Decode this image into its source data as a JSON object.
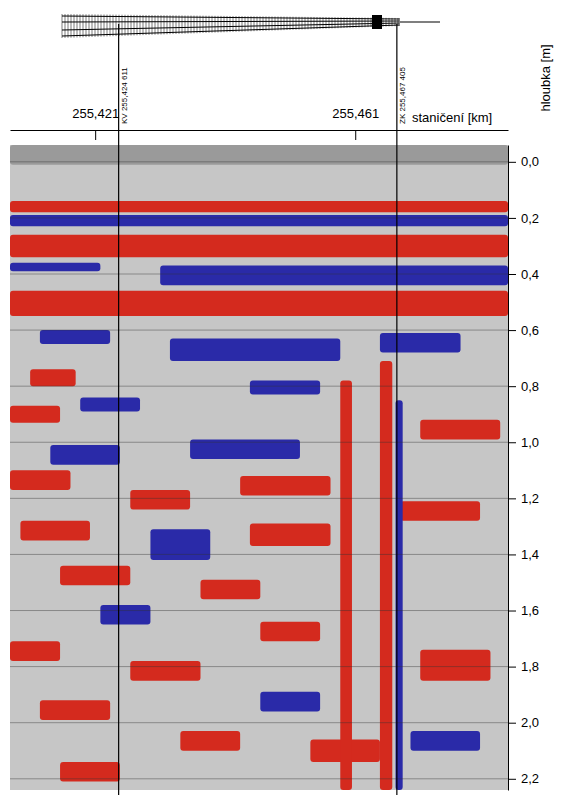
{
  "chart_data": {
    "type": "radargram",
    "x_label": "staničení [km]",
    "y_label": "hloubka [m]",
    "xlim": [
      255.4079,
      255.4845
    ],
    "xticks": [
      {
        "value": 255.421,
        "label": "255,421"
      },
      {
        "value": 255.461,
        "label": "255,461"
      }
    ],
    "ylim": [
      -0.06,
      2.24
    ],
    "yticks": [
      {
        "value": 0.0,
        "label": "0,0"
      },
      {
        "value": 0.2,
        "label": "0,2"
      },
      {
        "value": 0.4,
        "label": "0,4"
      },
      {
        "value": 0.6,
        "label": "0,6"
      },
      {
        "value": 0.8,
        "label": "0,8"
      },
      {
        "value": 1.0,
        "label": "1,0"
      },
      {
        "value": 1.2,
        "label": "1,2"
      },
      {
        "value": 1.4,
        "label": "1,4"
      },
      {
        "value": 1.6,
        "label": "1,6"
      },
      {
        "value": 1.8,
        "label": "1,8"
      },
      {
        "value": 2.0,
        "label": "2,0"
      },
      {
        "value": 2.2,
        "label": "2,2"
      }
    ],
    "grid": true,
    "markers": [
      {
        "label": "KV 255,424 611",
        "value": 255.424611
      },
      {
        "label": "ZK 255,467 405",
        "value": 255.467405
      }
    ],
    "reflections": [
      {
        "x": [
          255.4079,
          255.4845
        ],
        "depth": [
          -0.06,
          0.01
        ],
        "color": "#9a9a9a"
      },
      {
        "x": [
          255.4079,
          255.4845
        ],
        "depth": [
          0.14,
          0.18
        ],
        "color": "#d42a1e"
      },
      {
        "x": [
          255.4079,
          255.4845
        ],
        "depth": [
          0.19,
          0.23
        ],
        "color": "#2a2aa8"
      },
      {
        "x": [
          255.4079,
          255.4845
        ],
        "depth": [
          0.26,
          0.34
        ],
        "color": "#d42a1e"
      },
      {
        "x": [
          255.4079,
          255.4218
        ],
        "depth": [
          0.36,
          0.39
        ],
        "color": "#2a2aa8"
      },
      {
        "x": [
          255.431,
          255.4845
        ],
        "depth": [
          0.37,
          0.44
        ],
        "color": "#2a2aa8"
      },
      {
        "x": [
          255.4079,
          255.4845
        ],
        "depth": [
          0.46,
          0.55
        ],
        "color": "#d42a1e"
      },
      {
        "x": [
          255.4125,
          255.4233
        ],
        "depth": [
          0.6,
          0.65
        ],
        "color": "#2a2aa8"
      },
      {
        "x": [
          255.4325,
          255.4587
        ],
        "depth": [
          0.63,
          0.71
        ],
        "color": "#2a2aa8"
      },
      {
        "x": [
          255.4648,
          255.4772
        ],
        "depth": [
          0.61,
          0.68
        ],
        "color": "#2a2aa8"
      },
      {
        "x": [
          255.411,
          255.418
        ],
        "depth": [
          0.74,
          0.8
        ],
        "color": "#d42a1e"
      },
      {
        "x": [
          255.4187,
          255.4279
        ],
        "depth": [
          0.84,
          0.89
        ],
        "color": "#2a2aa8"
      },
      {
        "x": [
          255.4448,
          255.4556
        ],
        "depth": [
          0.78,
          0.83
        ],
        "color": "#2a2aa8"
      },
      {
        "x": [
          255.4079,
          255.4156
        ],
        "depth": [
          0.87,
          0.93
        ],
        "color": "#d42a1e"
      },
      {
        "x": [
          255.4141,
          255.4248
        ],
        "depth": [
          1.01,
          1.08
        ],
        "color": "#2a2aa8"
      },
      {
        "x": [
          255.4356,
          255.4525
        ],
        "depth": [
          0.99,
          1.06
        ],
        "color": "#2a2aa8"
      },
      {
        "x": [
          255.471,
          255.4833
        ],
        "depth": [
          0.92,
          0.99
        ],
        "color": "#d42a1e"
      },
      {
        "x": [
          255.4264,
          255.4356
        ],
        "depth": [
          1.17,
          1.24
        ],
        "color": "#d42a1e"
      },
      {
        "x": [
          255.4433,
          255.4572
        ],
        "depth": [
          1.12,
          1.19
        ],
        "color": "#d42a1e"
      },
      {
        "x": [
          255.4079,
          255.4172
        ],
        "depth": [
          1.1,
          1.17
        ],
        "color": "#d42a1e"
      },
      {
        "x": [
          255.4295,
          255.4387
        ],
        "depth": [
          1.31,
          1.42
        ],
        "color": "#2a2aa8"
      },
      {
        "x": [
          255.4095,
          255.4202
        ],
        "depth": [
          1.28,
          1.35
        ],
        "color": "#d42a1e"
      },
      {
        "x": [
          255.4156,
          255.4264
        ],
        "depth": [
          1.44,
          1.51
        ],
        "color": "#d42a1e"
      },
      {
        "x": [
          255.4448,
          255.4572
        ],
        "depth": [
          1.29,
          1.37
        ],
        "color": "#d42a1e"
      },
      {
        "x": [
          255.4679,
          255.4802
        ],
        "depth": [
          1.21,
          1.28
        ],
        "color": "#d42a1e"
      },
      {
        "x": [
          255.4372,
          255.4464
        ],
        "depth": [
          1.49,
          1.56
        ],
        "color": "#d42a1e"
      },
      {
        "x": [
          255.4218,
          255.4295
        ],
        "depth": [
          1.58,
          1.65
        ],
        "color": "#2a2aa8"
      },
      {
        "x": [
          255.4464,
          255.4556
        ],
        "depth": [
          1.64,
          1.71
        ],
        "color": "#d42a1e"
      },
      {
        "x": [
          255.4079,
          255.4156
        ],
        "depth": [
          1.71,
          1.78
        ],
        "color": "#d42a1e"
      },
      {
        "x": [
          255.4264,
          255.4372
        ],
        "depth": [
          1.78,
          1.85
        ],
        "color": "#d42a1e"
      },
      {
        "x": [
          255.471,
          255.4818
        ],
        "depth": [
          1.74,
          1.85
        ],
        "color": "#d42a1e"
      },
      {
        "x": [
          255.4464,
          255.4556
        ],
        "depth": [
          1.89,
          1.96
        ],
        "color": "#2a2aa8"
      },
      {
        "x": [
          255.4125,
          255.4233
        ],
        "depth": [
          1.92,
          1.99
        ],
        "color": "#d42a1e"
      },
      {
        "x": [
          255.4341,
          255.4433
        ],
        "depth": [
          2.03,
          2.1
        ],
        "color": "#d42a1e"
      },
      {
        "x": [
          255.4541,
          255.4648
        ],
        "depth": [
          2.06,
          2.14
        ],
        "color": "#d42a1e"
      },
      {
        "x": [
          255.4695,
          255.4802
        ],
        "depth": [
          2.03,
          2.1
        ],
        "color": "#2a2aa8"
      },
      {
        "x": [
          255.4156,
          255.4248
        ],
        "depth": [
          2.14,
          2.21
        ],
        "color": "#d42a1e"
      },
      {
        "x": [
          255.4587,
          255.4605
        ],
        "depth": [
          0.78,
          2.24
        ],
        "color": "#d42a1e"
      },
      {
        "x": [
          255.4648,
          255.4667
        ],
        "depth": [
          0.71,
          2.24
        ],
        "color": "#d42a1e"
      },
      {
        "x": [
          255.4672,
          255.4683
        ],
        "depth": [
          0.85,
          2.24
        ],
        "color": "#2a2aa8"
      }
    ]
  }
}
